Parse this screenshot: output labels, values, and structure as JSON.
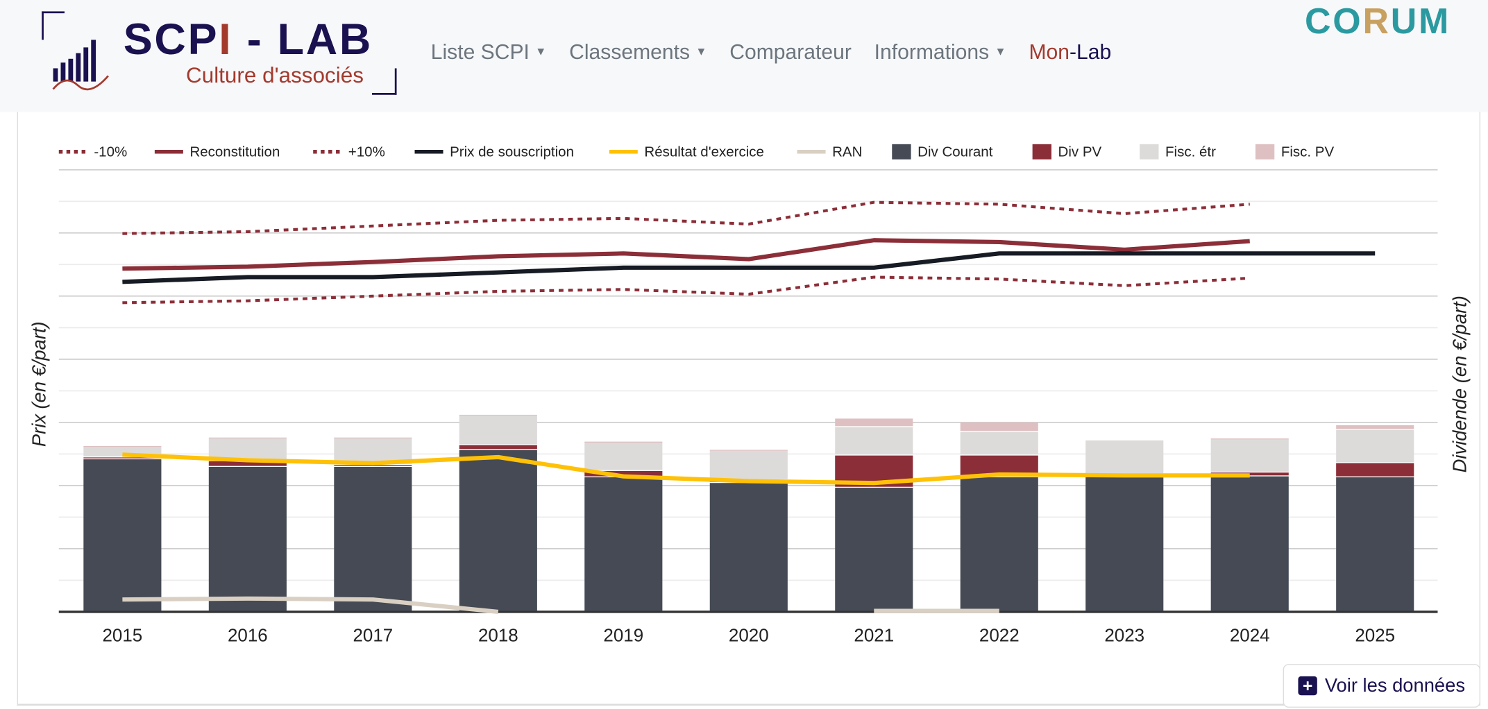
{
  "header": {
    "logo_title_a": "SCP",
    "logo_title_b": "I",
    "logo_title_c": " - LAB",
    "logo_subtitle": "Culture d'associés",
    "nav": [
      {
        "label": "Liste SCPI",
        "dropdown": true
      },
      {
        "label": "Classements",
        "dropdown": true
      },
      {
        "label": "Comparateur",
        "dropdown": false
      },
      {
        "label": "Informations",
        "dropdown": true
      }
    ],
    "monlab_a": "Mon",
    "monlab_b": "-Lab",
    "brand_a": "CO",
    "brand_b": "R",
    "brand_c": "UM"
  },
  "button": {
    "label": "Voir les données",
    "icon": "plus-square-icon"
  },
  "colors": {
    "navy": "#1a1150",
    "red": "#a33a2e",
    "teal": "#2a9aa0"
  },
  "chart_data": {
    "type": "bar",
    "categories": [
      "2015",
      "2016",
      "2017",
      "2018",
      "2019",
      "2020",
      "2021",
      "2022",
      "2023",
      "2024",
      "2025"
    ],
    "ylabel": "Prix (en €/part)",
    "y2label": "Dividende (en €/part)",
    "ylim": [
      0,
      14
    ],
    "grid": true,
    "legend_position": "top",
    "legend": [
      "-10%",
      "Reconstitution",
      "+10%",
      "Prix de souscription",
      "Résultat d'exercice",
      "RAN",
      "Div Courant",
      "Div PV",
      "Fisc. étr",
      "Fisc. PV"
    ],
    "bar_series": [
      {
        "name": "Div Courant",
        "color": "#454a54",
        "values": [
          4.83,
          4.59,
          4.59,
          5.13,
          4.26,
          4.08,
          3.93,
          4.26,
          4.26,
          4.29,
          4.26
        ]
      },
      {
        "name": "Div PV",
        "color": "#8b2e38",
        "values": [
          0.06,
          0.18,
          0.06,
          0.15,
          0.2,
          0.09,
          1.02,
          0.69,
          0.03,
          0.12,
          0.45
        ]
      },
      {
        "name": "Fisc. étr",
        "color": "#dcdbda",
        "values": [
          0.33,
          0.72,
          0.84,
          0.93,
          0.9,
          0.93,
          0.9,
          0.75,
          1.14,
          1.05,
          1.05
        ]
      },
      {
        "name": "Fisc. PV",
        "color": "#dfc0c2",
        "values": [
          0.03,
          0.03,
          0.03,
          0.03,
          0.03,
          0.03,
          0.27,
          0.3,
          0.0,
          0.03,
          0.15
        ]
      }
    ],
    "line_series": [
      {
        "name": "-10%",
        "color": "#8b2e38",
        "dashed": true,
        "values": [
          9.79,
          9.85,
          10.0,
          10.15,
          10.21,
          10.06,
          10.6,
          10.54,
          10.33,
          10.57,
          null
        ]
      },
      {
        "name": "Reconstitution",
        "color": "#8b2e38",
        "dashed": false,
        "values": [
          10.87,
          10.93,
          11.08,
          11.26,
          11.35,
          11.17,
          11.77,
          11.71,
          11.47,
          11.74,
          null
        ]
      },
      {
        "name": "+10%",
        "color": "#8b2e38",
        "dashed": true,
        "values": [
          11.98,
          12.04,
          12.22,
          12.4,
          12.46,
          12.28,
          12.97,
          12.91,
          12.61,
          12.91,
          null
        ]
      },
      {
        "name": "Prix de souscription",
        "color": "#161b24",
        "dashed": false,
        "values": [
          10.45,
          10.6,
          10.6,
          10.75,
          10.9,
          10.9,
          10.9,
          11.35,
          11.35,
          11.35,
          11.35
        ]
      },
      {
        "name": "Résultat d'exercice",
        "color": "#ffc107",
        "dashed": false,
        "values": [
          4.98,
          4.8,
          4.71,
          4.9,
          4.29,
          4.14,
          4.08,
          4.35,
          4.32,
          4.32,
          null
        ]
      },
      {
        "name": "RAN",
        "color": "#d9d0c3",
        "dashed": false,
        "values": [
          0.39,
          0.42,
          0.39,
          0.0,
          null,
          null,
          0.03,
          0.03,
          null,
          null,
          null
        ]
      }
    ]
  }
}
